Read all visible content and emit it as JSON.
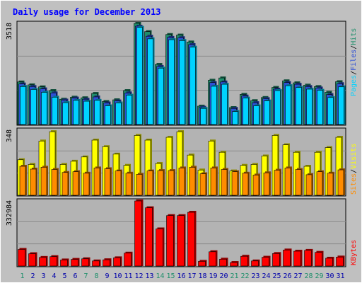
{
  "title": "Daily usage for December 2013",
  "colors": {
    "background": "#c0c0c0",
    "panel": "#b3b3b3",
    "title": "#0000ff",
    "hits": "#1f8f6b",
    "files": "#2d4fd6",
    "pages": "#00d2ff",
    "visits": "#ffff00",
    "sites": "#ff8c00",
    "kbytes": "#ff0000",
    "weekend_label": "#1f8f6b",
    "weekday_label": "#0000aa"
  },
  "right_labels": {
    "top": [
      "Pages",
      "/",
      "Files",
      "/",
      "Hits"
    ],
    "middle": [
      "Sites",
      "/",
      "Visits"
    ],
    "bottom": [
      "KBytes"
    ]
  },
  "chart_data": {
    "type": "bar",
    "categories": [
      "1",
      "2",
      "3",
      "4",
      "5",
      "6",
      "7",
      "8",
      "9",
      "10",
      "11",
      "12",
      "13",
      "14",
      "15",
      "16",
      "17",
      "18",
      "19",
      "20",
      "21",
      "22",
      "23",
      "24",
      "25",
      "26",
      "27",
      "28",
      "29",
      "30",
      "31"
    ],
    "weekend_days": [
      "1",
      "7",
      "8",
      "14",
      "15",
      "21",
      "22",
      "28",
      "29"
    ],
    "panels": [
      {
        "id": "top",
        "max_label": "3518",
        "ymax": 3518,
        "series": [
          {
            "name": "Hits",
            "values": [
              1480,
              1380,
              1310,
              1180,
              880,
              950,
              930,
              1080,
              800,
              860,
              1180,
              3518,
              3230,
              2090,
              3130,
              3110,
              2870,
              640,
              1540,
              1620,
              590,
              1050,
              830,
              940,
              1290,
              1520,
              1450,
              1370,
              1320,
              1120,
              1490
            ]
          },
          {
            "name": "Files",
            "values": [
              1410,
              1320,
              1240,
              1100,
              850,
              920,
              880,
              960,
              750,
              820,
              1100,
              3420,
              3070,
              2020,
              3030,
              3020,
              2780,
              600,
              1460,
              1480,
              560,
              990,
              760,
              900,
              1230,
              1460,
              1400,
              1320,
              1270,
              1040,
              1420
            ]
          },
          {
            "name": "Pages",
            "values": [
              1320,
              1220,
              1120,
              950,
              760,
              840,
              810,
              840,
              650,
              750,
              1020,
              3380,
              2980,
              1960,
              2950,
              2920,
              2690,
              560,
              1330,
              1400,
              450,
              920,
              650,
              820,
              1180,
              1350,
              1290,
              1230,
              1190,
              940,
              1310
            ]
          }
        ]
      },
      {
        "id": "middle",
        "max_label": "348",
        "ymax": 348,
        "series": [
          {
            "name": "Visits",
            "values": [
              190,
              165,
              290,
              340,
              165,
              182,
              205,
              295,
              260,
              220,
              160,
              320,
              295,
              170,
              310,
              340,
              215,
              135,
              290,
              230,
              130,
              160,
              165,
              210,
              320,
              270,
              230,
              155,
              230,
              255,
              310
            ]
          },
          {
            "name": "Sites",
            "values": [
              155,
              140,
              150,
              138,
              122,
              126,
              118,
              146,
              142,
              130,
              118,
              112,
              130,
              132,
              132,
              146,
              150,
              115,
              146,
              138,
              126,
              118,
              108,
              120,
              134,
              146,
              138,
              110,
              126,
              118,
              136
            ]
          }
        ]
      },
      {
        "id": "bottom",
        "max_label": "332984",
        "ymax": 332984,
        "series": [
          {
            "name": "KBytes",
            "values": [
              85000,
              63000,
              44000,
              48000,
              31000,
              34000,
              37000,
              26000,
              32000,
              42000,
              66000,
              332984,
              298000,
              190000,
              258000,
              258000,
              275000,
              24000,
              73000,
              35000,
              18000,
              50000,
              26000,
              45000,
              64000,
              82000,
              76000,
              80000,
              70000,
              40000,
              46000
            ]
          }
        ]
      }
    ]
  }
}
